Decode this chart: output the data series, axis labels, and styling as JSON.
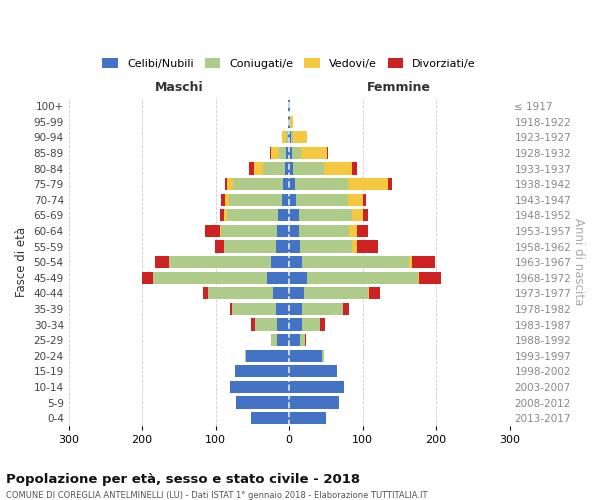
{
  "age_groups": [
    "0-4",
    "5-9",
    "10-14",
    "15-19",
    "20-24",
    "25-29",
    "30-34",
    "35-39",
    "40-44",
    "45-49",
    "50-54",
    "55-59",
    "60-64",
    "65-69",
    "70-74",
    "75-79",
    "80-84",
    "85-89",
    "90-94",
    "95-99",
    "100+"
  ],
  "birth_years": [
    "2013-2017",
    "2008-2012",
    "2003-2007",
    "1998-2002",
    "1993-1997",
    "1988-1992",
    "1983-1987",
    "1978-1982",
    "1973-1977",
    "1968-1972",
    "1963-1967",
    "1958-1962",
    "1953-1957",
    "1948-1952",
    "1943-1947",
    "1938-1942",
    "1933-1937",
    "1928-1932",
    "1923-1927",
    "1918-1922",
    "≤ 1917"
  ],
  "maschi": {
    "celibe": [
      52,
      72,
      80,
      73,
      58,
      17,
      17,
      18,
      22,
      30,
      25,
      18,
      17,
      15,
      10,
      8,
      5,
      4,
      2,
      1,
      1
    ],
    "coniugato": [
      0,
      0,
      0,
      0,
      2,
      8,
      30,
      60,
      88,
      155,
      138,
      70,
      75,
      70,
      72,
      68,
      30,
      10,
      2,
      0,
      0
    ],
    "vedovo": [
      0,
      0,
      0,
      0,
      0,
      0,
      0,
      0,
      0,
      0,
      1,
      1,
      2,
      3,
      5,
      8,
      13,
      10,
      5,
      1,
      0
    ],
    "divorziato": [
      0,
      0,
      0,
      0,
      0,
      0,
      5,
      3,
      7,
      15,
      18,
      12,
      20,
      6,
      5,
      3,
      7,
      2,
      0,
      0,
      0
    ]
  },
  "femmine": {
    "nubile": [
      50,
      68,
      75,
      65,
      45,
      15,
      17,
      18,
      20,
      25,
      18,
      15,
      13,
      13,
      10,
      8,
      5,
      4,
      2,
      1,
      1
    ],
    "coniugata": [
      0,
      0,
      0,
      0,
      2,
      6,
      25,
      55,
      88,
      150,
      145,
      70,
      68,
      72,
      70,
      72,
      42,
      12,
      3,
      0,
      0
    ],
    "vedova": [
      0,
      0,
      0,
      0,
      0,
      0,
      0,
      0,
      1,
      2,
      4,
      8,
      12,
      15,
      20,
      55,
      38,
      35,
      20,
      4,
      0
    ],
    "divorziata": [
      0,
      0,
      0,
      0,
      0,
      2,
      7,
      8,
      15,
      30,
      32,
      28,
      15,
      8,
      5,
      5,
      8,
      2,
      0,
      0,
      0
    ]
  },
  "colors": {
    "celibe": "#4472C4",
    "coniugato": "#AECB8A",
    "vedovo": "#F5C842",
    "divorziato": "#CC2222"
  },
  "title": "Popolazione per età, sesso e stato civile - 2018",
  "subtitle": "COMUNE DI COREGLIA ANTELMINELLI (LU) - Dati ISTAT 1° gennaio 2018 - Elaborazione TUTTITALIA.IT",
  "xlabel_left": "Maschi",
  "xlabel_right": "Femmine",
  "ylabel": "Fasce di età",
  "ylabel_right": "Anni di nascita",
  "xlim": 300,
  "legend_labels": [
    "Celibi/Nubili",
    "Coniugati/e",
    "Vedovi/e",
    "Divorziati/e"
  ],
  "background_color": "#ffffff",
  "grid_color": "#cccccc"
}
